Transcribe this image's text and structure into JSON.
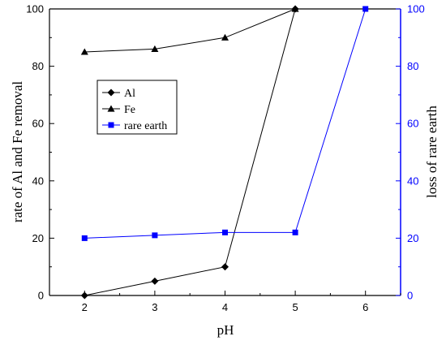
{
  "chart_data": {
    "type": "line",
    "xlabel": "pH",
    "ylabel_left": "rate of Al and Fe removal",
    "ylabel_right": "loss of rare earth",
    "xlim": [
      1.5,
      6.5
    ],
    "ylim_left": [
      0,
      100
    ],
    "ylim_right": [
      0,
      100
    ],
    "xticks": [
      2,
      3,
      4,
      5,
      6
    ],
    "yticks_left": [
      0,
      20,
      40,
      60,
      80,
      100
    ],
    "yticks_right": [
      0,
      20,
      40,
      60,
      80,
      100
    ],
    "grid": false,
    "legend_position": "middle-left",
    "series": [
      {
        "name": "Al",
        "axis": "left",
        "marker": "diamond",
        "color": "#000000",
        "x": [
          2,
          3,
          4,
          5
        ],
        "y": [
          0,
          5,
          10,
          100
        ]
      },
      {
        "name": "Fe",
        "axis": "left",
        "marker": "triangle",
        "color": "#000000",
        "x": [
          2,
          3,
          4,
          5
        ],
        "y": [
          85,
          86,
          90,
          100
        ]
      },
      {
        "name": "rare earth",
        "axis": "right",
        "marker": "square",
        "color": "#0000ff",
        "x": [
          2,
          3,
          4,
          5,
          6
        ],
        "y": [
          20,
          21,
          22,
          22,
          100
        ]
      }
    ],
    "colors": {
      "left_axis": "#000000",
      "right_axis": "#0000ff"
    }
  }
}
